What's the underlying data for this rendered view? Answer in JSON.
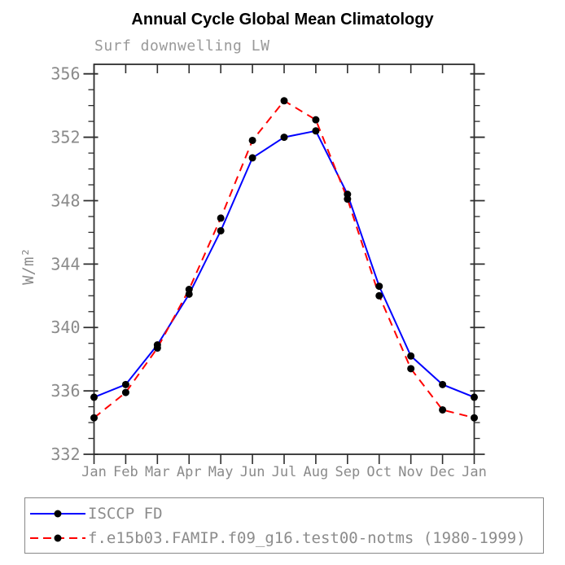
{
  "title": "Annual Cycle Global Mean Climatology",
  "subtitle": "Surf downwelling LW",
  "chart_data": {
    "type": "line",
    "title": "Annual Cycle Global Mean Climatology",
    "subtitle": "Surf downwelling LW",
    "ylabel": "W/m²",
    "xlabel": "",
    "categories": [
      "Jan",
      "Feb",
      "Mar",
      "Apr",
      "May",
      "Jun",
      "Jul",
      "Aug",
      "Sep",
      "Oct",
      "Nov",
      "Dec",
      "Jan"
    ],
    "series": [
      {
        "name": "ISCCP FD",
        "color": "#0000ff",
        "line_style": "solid",
        "values": [
          335.6,
          336.4,
          338.9,
          342.1,
          346.1,
          350.7,
          352.0,
          352.4,
          348.4,
          342.6,
          338.2,
          336.4,
          335.6
        ]
      },
      {
        "name": "f.e15b03.FAMIP.f09_g16.test00-notms (1980-1999)",
        "color": "#ff0000",
        "line_style": "dashed",
        "values": [
          334.3,
          335.9,
          338.7,
          342.4,
          346.9,
          351.8,
          354.3,
          353.1,
          348.1,
          342.0,
          337.4,
          334.8,
          334.3
        ]
      }
    ],
    "ylim": [
      332,
      356
    ],
    "yticks": [
      332,
      336,
      340,
      344,
      348,
      352,
      356
    ],
    "minor_tick_step": 1,
    "marker": {
      "shape": "circle",
      "color": "#000000"
    },
    "grid": false,
    "legend_position": "bottom",
    "axis_color": "#2e2e2e",
    "tick_label_color": "#8a8a8a"
  }
}
